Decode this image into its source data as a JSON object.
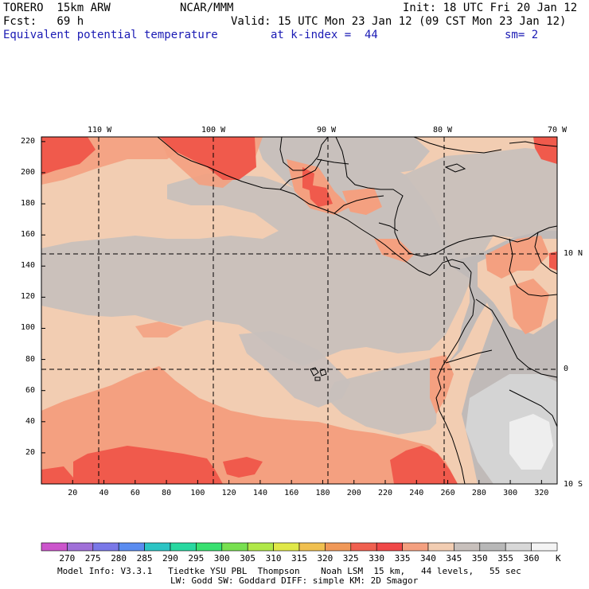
{
  "header": {
    "model": "TORERO  15km ARW",
    "org": "NCAR/MMM",
    "init": "Init: 18 UTC Fri 20 Jan 12",
    "fcst": "Fcst:   69 h",
    "valid": "Valid: 15 UTC Mon 23 Jan 12 (09 CST Mon 23 Jan 12)",
    "field": "Equivalent potential temperature",
    "level": "at k-index =  44",
    "smooth": "sm= 2"
  },
  "map": {
    "lon_labels": [
      "110 W",
      "100 W",
      "90 W",
      "80 W",
      "70 W"
    ],
    "lat_labels": [
      "10 N",
      "0",
      "10 S"
    ],
    "x_ticks": [
      "20",
      "40",
      "60",
      "80",
      "100",
      "120",
      "140",
      "160",
      "180",
      "200",
      "220",
      "240",
      "260",
      "280",
      "300",
      "320"
    ],
    "y_ticks": [
      "20",
      "40",
      "60",
      "80",
      "100",
      "120",
      "140",
      "160",
      "180",
      "200",
      "220"
    ],
    "ocean_color": "#f2cdb2",
    "land_gray": "#c8c0bc"
  },
  "colorbar": {
    "values": [
      "270",
      "275",
      "280",
      "285",
      "290",
      "295",
      "300",
      "305",
      "310",
      "315",
      "320",
      "325",
      "330",
      "335",
      "340",
      "345",
      "350",
      "355",
      "360"
    ],
    "unit": "K",
    "colors": [
      "#cc55cc",
      "#a070d8",
      "#7a78e8",
      "#5a8cf0",
      "#2cc4c4",
      "#28d8a0",
      "#38e070",
      "#78e050",
      "#b0e848",
      "#e0e848",
      "#f0c050",
      "#f09858",
      "#f06050",
      "#f04848",
      "#f4a080",
      "#f2cdb2",
      "#c8c0bc",
      "#b8b8b8",
      "#d8d8d8",
      "#f4f4f4"
    ]
  },
  "footer": {
    "line1": "Model Info: V3.3.1   Tiedtke YSU PBL  Thompson    Noah LSM  15 km,   44 levels,   55 sec",
    "line2": "LW: Godd SW: Goddard DIFF: simple KM: 2D Smagor"
  }
}
